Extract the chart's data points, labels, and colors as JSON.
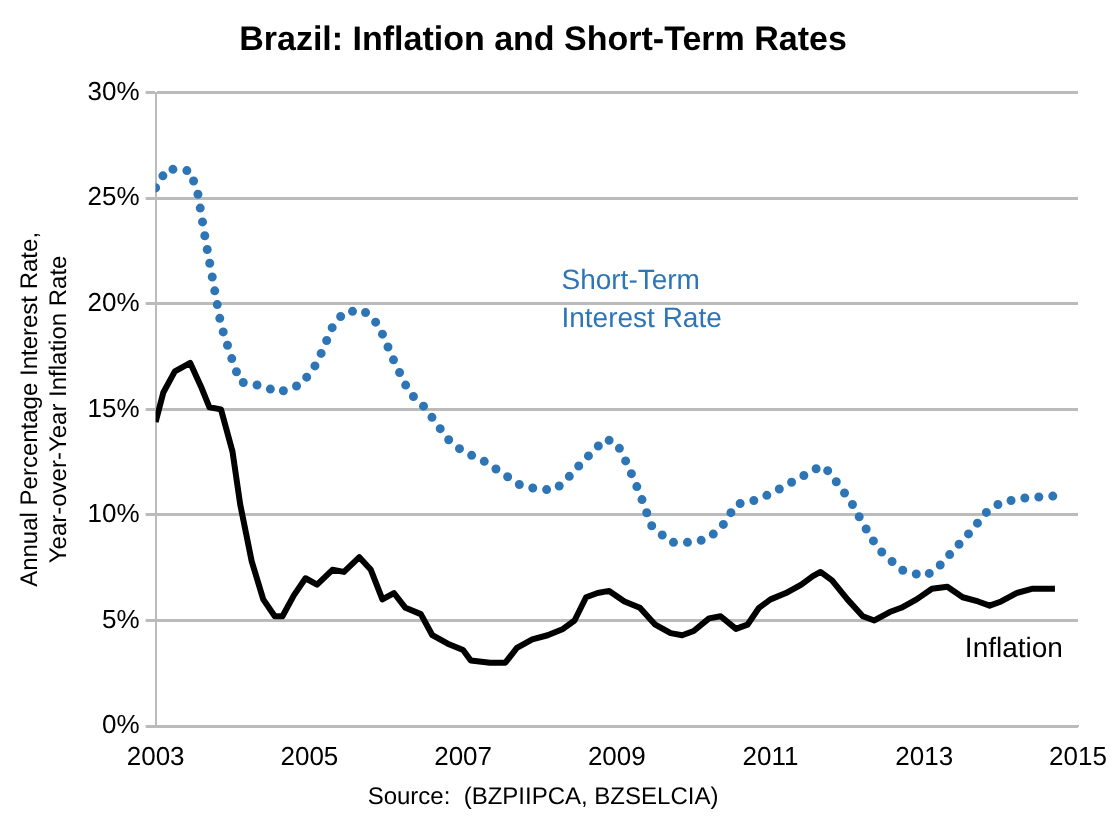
{
  "chart_data": {
    "type": "line",
    "title": "Brazil: Inflation and Short-Term Rates",
    "ylabel": "Annual Percentage Interest Rate, Year-over-Year Inflation Rate",
    "annotations": [
      "Source:  (BZPIIPCA, BZSELCIA)"
    ],
    "xlim": [
      2003,
      2015
    ],
    "xticks": [
      2003,
      2005,
      2007,
      2009,
      2011,
      2013,
      2015
    ],
    "ylim": [
      0,
      30
    ],
    "yticks": [
      {
        "value": 0,
        "label": "0%"
      },
      {
        "value": 5,
        "label": "5%"
      },
      {
        "value": 10,
        "label": "10%"
      },
      {
        "value": 15,
        "label": "15%"
      },
      {
        "value": 20,
        "label": "20%"
      },
      {
        "value": 25,
        "label": "25%"
      },
      {
        "value": 30,
        "label": "30%"
      }
    ],
    "grid": "y",
    "legend": false,
    "marker": "none",
    "series": [
      {
        "name": "Short-Term Interest Rate",
        "color": "#2e75b6",
        "line_style": "dotted",
        "x": [
          2003.0,
          2003.15,
          2003.45,
          2003.55,
          2003.65,
          2003.75,
          2003.85,
          2004.0,
          2004.1,
          2004.4,
          2004.6,
          2004.9,
          2005.1,
          2005.3,
          2005.45,
          2005.7,
          2005.9,
          2006.1,
          2006.3,
          2006.5,
          2006.8,
          2007.0,
          2007.25,
          2007.5,
          2007.75,
          2008.0,
          2008.2,
          2008.35,
          2008.55,
          2008.85,
          2009.0,
          2009.15,
          2009.3,
          2009.45,
          2009.7,
          2010.0,
          2010.2,
          2010.4,
          2010.55,
          2010.8,
          2011.0,
          2011.3,
          2011.6,
          2011.7,
          2011.85,
          2012.05,
          2012.2,
          2012.4,
          2012.7,
          2013.0,
          2013.15,
          2013.35,
          2013.6,
          2013.8,
          2014.0,
          2014.3,
          2014.7
        ],
        "values": [
          25.5,
          26.4,
          26.3,
          25.2,
          23,
          21,
          19,
          17.3,
          16.3,
          16.1,
          15.8,
          16.2,
          17.2,
          18.9,
          19.6,
          19.7,
          19.0,
          17.3,
          15.8,
          15.1,
          13.6,
          13.0,
          12.6,
          12.0,
          11.4,
          11.2,
          11.2,
          11.7,
          12.5,
          13.6,
          13.4,
          12.3,
          11,
          9.5,
          8.7,
          8.7,
          8.9,
          9.6,
          10.5,
          10.7,
          11,
          11.6,
          12.2,
          12.3,
          11.6,
          10.6,
          9.6,
          8.4,
          7.4,
          7.1,
          7.4,
          8.2,
          9.2,
          10.1,
          10.6,
          10.8,
          10.9
        ]
      },
      {
        "name": "Inflation",
        "color": "#000000",
        "line_style": "solid",
        "x": [
          2003.0,
          2003.1,
          2003.25,
          2003.45,
          2003.6,
          2003.7,
          2003.85,
          2004.0,
          2004.1,
          2004.25,
          2004.4,
          2004.55,
          2004.65,
          2004.8,
          2004.95,
          2005.1,
          2005.3,
          2005.45,
          2005.65,
          2005.8,
          2005.95,
          2006.1,
          2006.25,
          2006.45,
          2006.6,
          2006.8,
          2007.0,
          2007.1,
          2007.35,
          2007.55,
          2007.7,
          2007.9,
          2008.1,
          2008.3,
          2008.45,
          2008.6,
          2008.75,
          2008.9,
          2009.1,
          2009.3,
          2009.5,
          2009.7,
          2009.85,
          2010.0,
          2010.2,
          2010.35,
          2010.55,
          2010.7,
          2010.85,
          2011.0,
          2011.2,
          2011.4,
          2011.55,
          2011.65,
          2011.8,
          2012.0,
          2012.2,
          2012.35,
          2012.55,
          2012.7,
          2012.9,
          2013.1,
          2013.3,
          2013.5,
          2013.7,
          2013.85,
          2014.0,
          2014.2,
          2014.4,
          2014.7
        ],
        "values": [
          14.4,
          15.8,
          16.8,
          17.2,
          16,
          15.1,
          15,
          13,
          10.5,
          7.8,
          6,
          5.2,
          5.2,
          6.2,
          7,
          6.7,
          7.4,
          7.3,
          8,
          7.4,
          6,
          6.3,
          5.6,
          5.3,
          4.3,
          3.9,
          3.6,
          3.1,
          3.0,
          3.0,
          3.7,
          4.1,
          4.3,
          4.6,
          5.0,
          6.1,
          6.3,
          6.4,
          5.9,
          5.6,
          4.8,
          4.4,
          4.3,
          4.5,
          5.1,
          5.2,
          4.6,
          4.8,
          5.6,
          6.0,
          6.3,
          6.7,
          7.1,
          7.3,
          6.9,
          6.0,
          5.2,
          5.0,
          5.4,
          5.6,
          6.0,
          6.5,
          6.6,
          6.1,
          5.9,
          5.7,
          5.9,
          6.3,
          6.5,
          6.5
        ]
      }
    ]
  }
}
